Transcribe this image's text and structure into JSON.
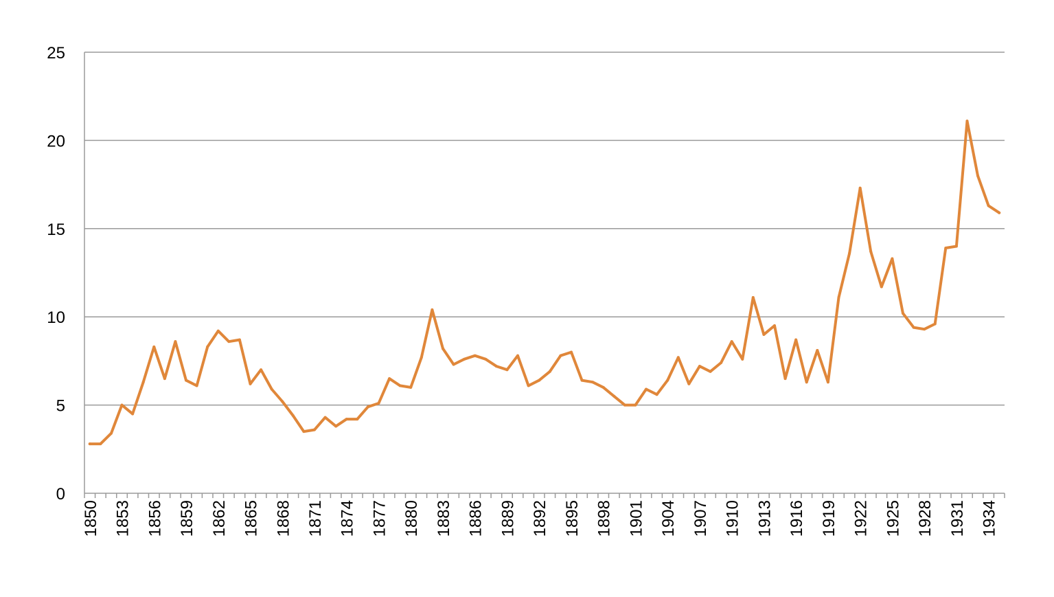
{
  "chart_data": {
    "type": "line",
    "title": "",
    "xlabel": "",
    "ylabel": "",
    "x": [
      1850,
      1851,
      1852,
      1853,
      1854,
      1855,
      1856,
      1857,
      1858,
      1859,
      1860,
      1861,
      1862,
      1863,
      1864,
      1865,
      1866,
      1867,
      1868,
      1869,
      1870,
      1871,
      1872,
      1873,
      1874,
      1875,
      1876,
      1877,
      1878,
      1879,
      1880,
      1881,
      1882,
      1883,
      1884,
      1885,
      1886,
      1887,
      1888,
      1889,
      1890,
      1891,
      1892,
      1893,
      1894,
      1895,
      1896,
      1897,
      1898,
      1899,
      1900,
      1901,
      1902,
      1903,
      1904,
      1905,
      1906,
      1907,
      1908,
      1909,
      1910,
      1911,
      1912,
      1913,
      1914,
      1915,
      1916,
      1917,
      1918,
      1919,
      1920,
      1921,
      1922,
      1923,
      1924,
      1925,
      1926,
      1927,
      1928,
      1929,
      1930,
      1931,
      1932,
      1933,
      1934,
      1935
    ],
    "series": [
      {
        "values": [
          2.8,
          2.8,
          3.4,
          5.0,
          4.5,
          6.3,
          8.3,
          6.5,
          8.6,
          6.4,
          6.1,
          8.3,
          9.2,
          8.6,
          8.7,
          6.2,
          7.0,
          5.9,
          5.2,
          4.4,
          3.5,
          3.6,
          4.3,
          3.8,
          4.2,
          4.2,
          4.9,
          5.1,
          6.5,
          6.1,
          6.0,
          7.7,
          10.4,
          8.2,
          7.3,
          7.6,
          7.8,
          7.6,
          7.2,
          7.0,
          7.8,
          6.1,
          6.4,
          6.9,
          7.8,
          8.0,
          6.4,
          6.3,
          6.0,
          5.5,
          5.0,
          5.0,
          5.9,
          5.6,
          6.4,
          7.7,
          6.2,
          7.2,
          6.9,
          7.4,
          8.6,
          7.6,
          11.1,
          9.0,
          9.5,
          6.5,
          8.7,
          6.3,
          8.1,
          6.3,
          11.1,
          13.6,
          17.3,
          13.7,
          11.7,
          13.3,
          10.2,
          9.4,
          9.3,
          9.6,
          13.9,
          14.0,
          21.1,
          18.0,
          16.3,
          15.9
        ],
        "color": "#E0873A"
      }
    ],
    "x_tick_labels": [
      "1850",
      "1853",
      "1856",
      "1859",
      "1862",
      "1865",
      "1868",
      "1871",
      "1874",
      "1877",
      "1880",
      "1883",
      "1886",
      "1889",
      "1892",
      "1895",
      "1898",
      "1901",
      "1904",
      "1907",
      "1910",
      "1913",
      "1916",
      "1919",
      "1922",
      "1925",
      "1928",
      "1931",
      "1934"
    ],
    "y_ticks": [
      0,
      5,
      10,
      15,
      20,
      25
    ],
    "y_tick_labels": [
      "0",
      "5",
      "10",
      "15",
      "20",
      "25"
    ],
    "ylim": [
      0,
      25
    ],
    "grid": "horizontal",
    "legend": "none",
    "colors": {
      "line": "#E0873A",
      "grid": "#9a9a9a",
      "text": "#000000"
    }
  }
}
